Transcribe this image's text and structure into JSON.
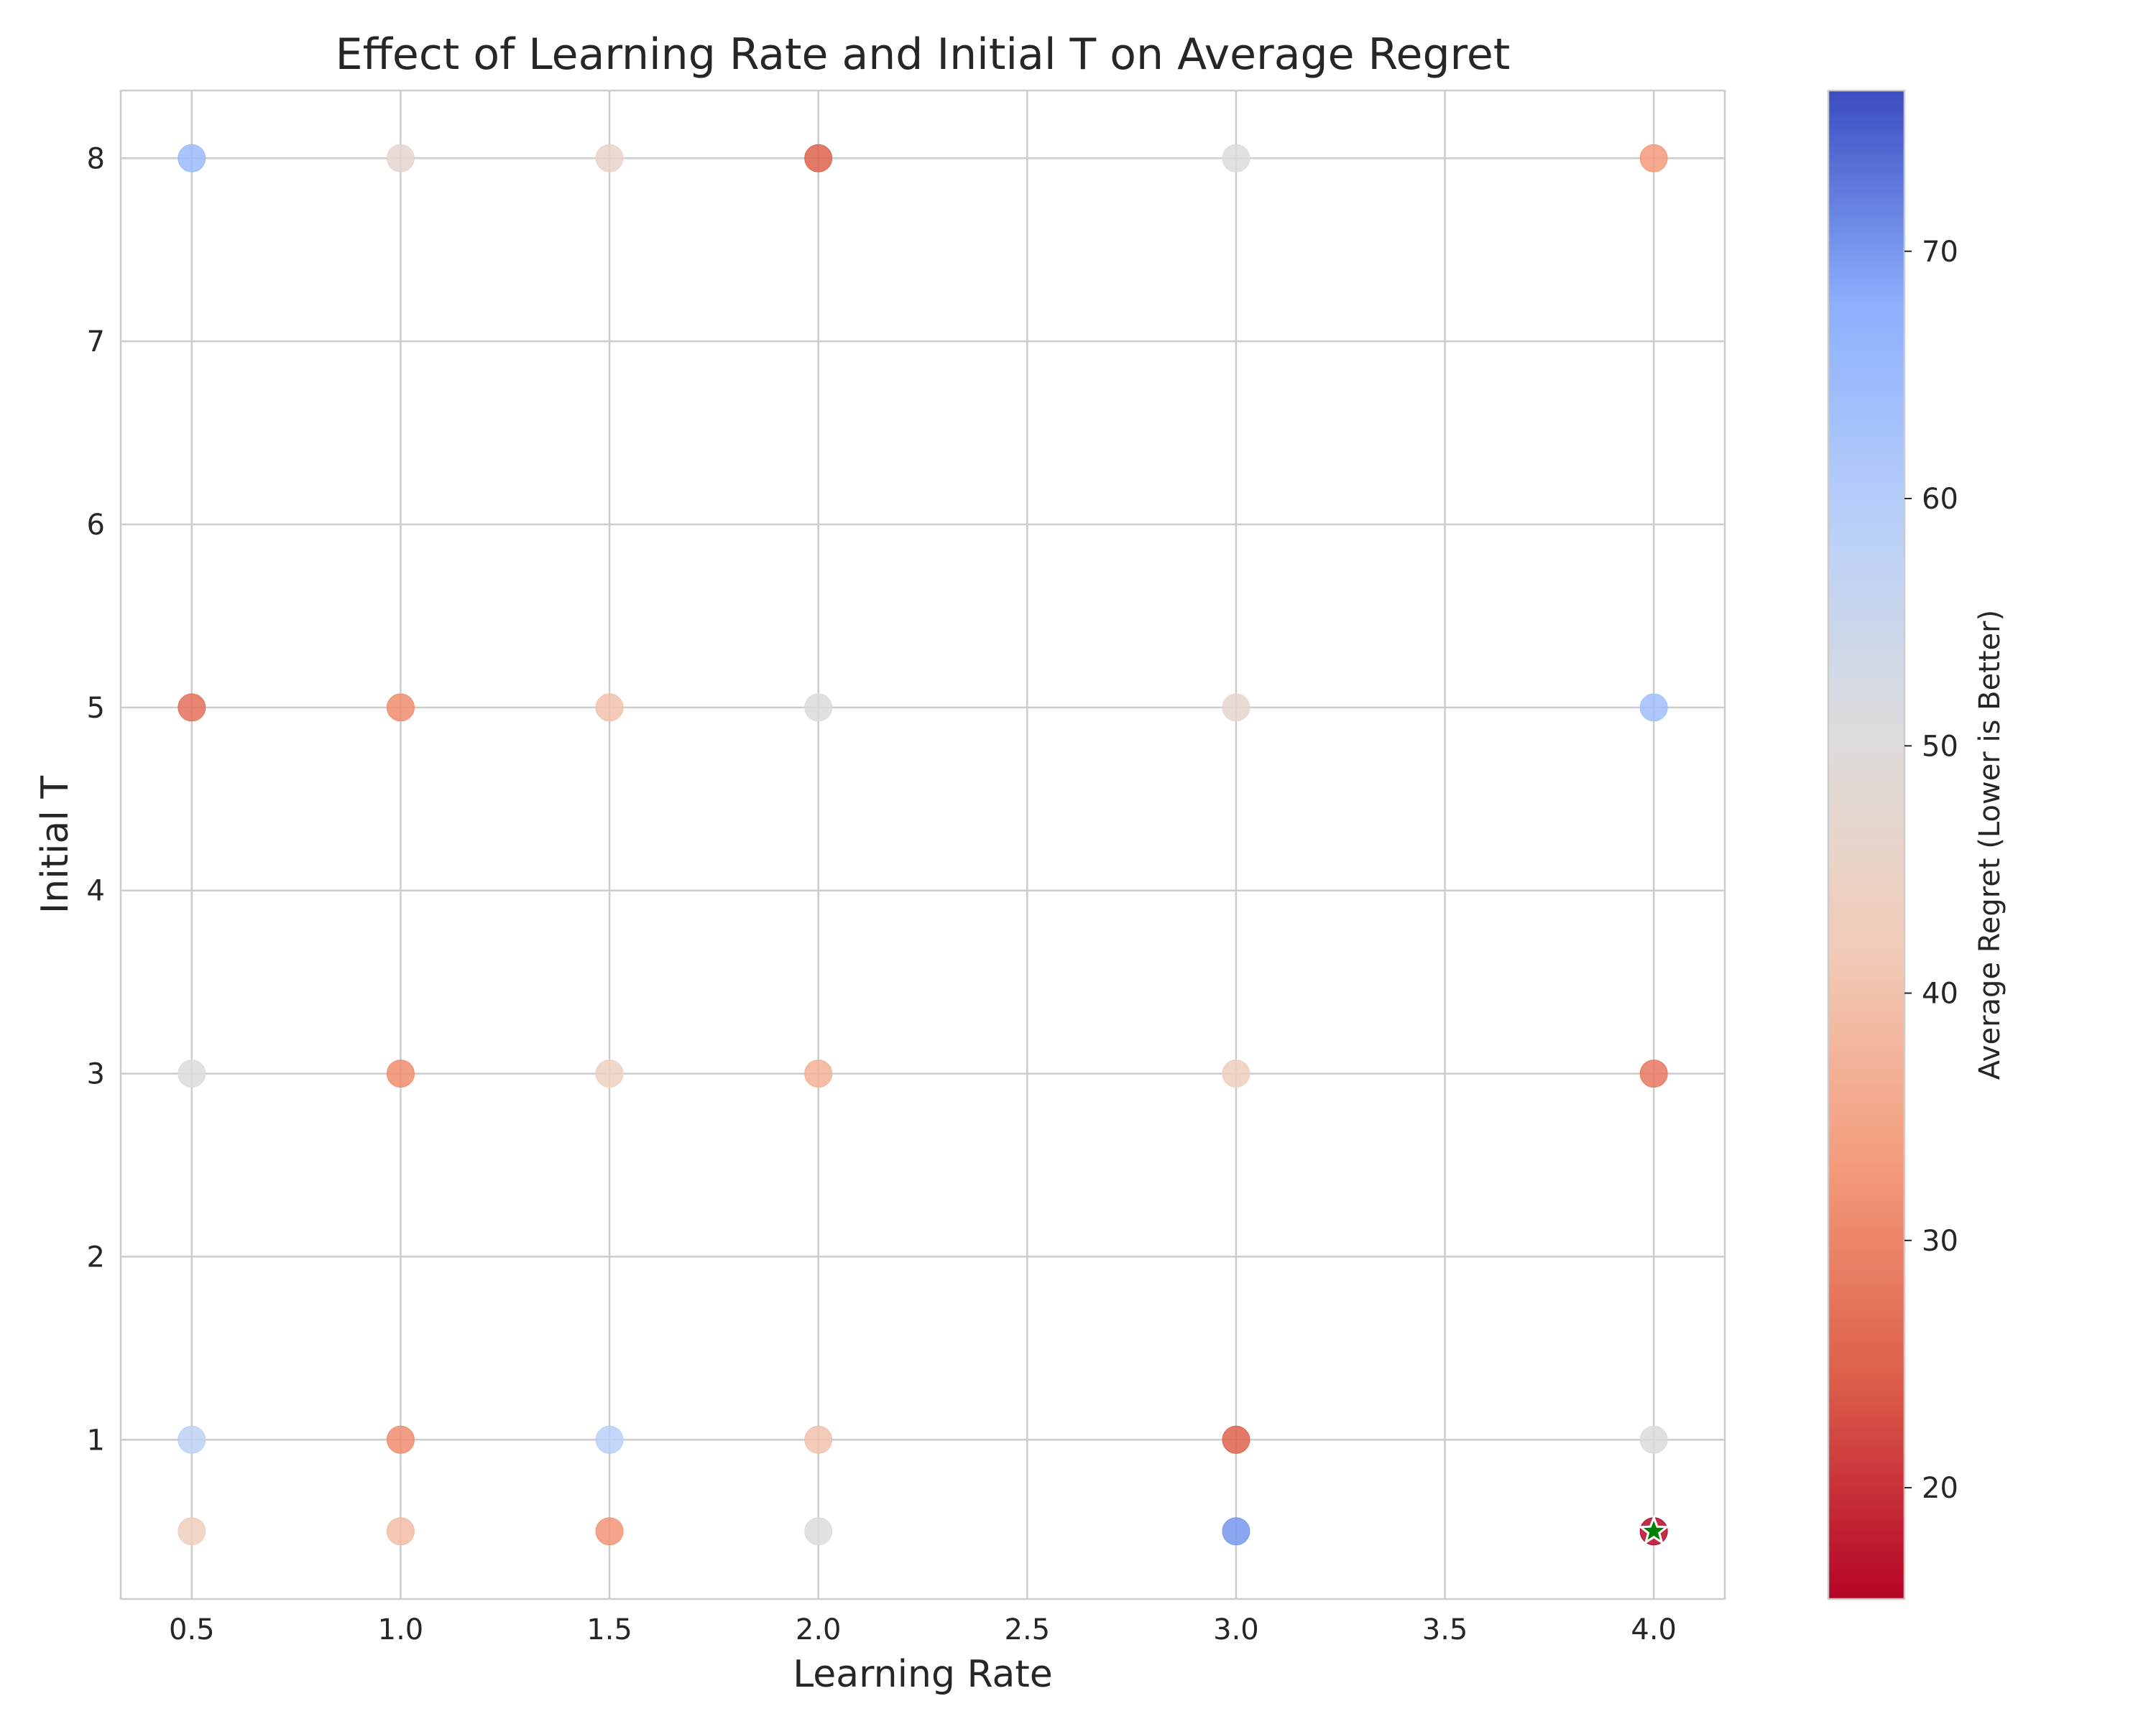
{
  "chart_data": {
    "type": "scatter",
    "title": "Effect of Learning Rate and Initial T on Average Regret",
    "xlabel": "Learning Rate",
    "ylabel": "Initial T",
    "xlim": [
      0.33,
      4.17
    ],
    "ylim": [
      0.13,
      8.37
    ],
    "x_ticks": [
      0.5,
      1.0,
      1.5,
      2.0,
      2.5,
      3.0,
      3.5,
      4.0
    ],
    "y_ticks": [
      1,
      2,
      3,
      4,
      5,
      6,
      7,
      8
    ],
    "grid": true,
    "colorbar": {
      "label": "Average Regret (Lower is Better)",
      "range": [
        15.5,
        76.5
      ],
      "ticks": [
        20,
        30,
        40,
        50,
        60,
        70
      ],
      "colormap": "coolwarm_r",
      "stops": [
        "#b40426",
        "#dc5d4a",
        "#f49a7b",
        "#f2cbb7",
        "#dddcdc",
        "#b9d0f9",
        "#8db0fe",
        "#3b4cc0"
      ]
    },
    "points": [
      {
        "x": 0.5,
        "y": 8,
        "regret": 65
      },
      {
        "x": 1.0,
        "y": 8,
        "regret": 47
      },
      {
        "x": 1.5,
        "y": 8,
        "regret": 46
      },
      {
        "x": 2.0,
        "y": 8,
        "regret": 25
      },
      {
        "x": 3.0,
        "y": 8,
        "regret": 50
      },
      {
        "x": 4.0,
        "y": 8,
        "regret": 33
      },
      {
        "x": 0.5,
        "y": 5,
        "regret": 27
      },
      {
        "x": 1.0,
        "y": 5,
        "regret": 31
      },
      {
        "x": 1.5,
        "y": 5,
        "regret": 40
      },
      {
        "x": 2.0,
        "y": 5,
        "regret": 51
      },
      {
        "x": 3.0,
        "y": 5,
        "regret": 47
      },
      {
        "x": 4.0,
        "y": 5,
        "regret": 64
      },
      {
        "x": 0.5,
        "y": 3,
        "regret": 50
      },
      {
        "x": 1.0,
        "y": 3,
        "regret": 31
      },
      {
        "x": 1.5,
        "y": 3,
        "regret": 44
      },
      {
        "x": 2.0,
        "y": 3,
        "regret": 37
      },
      {
        "x": 3.0,
        "y": 3,
        "regret": 43
      },
      {
        "x": 4.0,
        "y": 3,
        "regret": 28
      },
      {
        "x": 0.5,
        "y": 1,
        "regret": 58
      },
      {
        "x": 1.0,
        "y": 1,
        "regret": 31
      },
      {
        "x": 1.5,
        "y": 1,
        "regret": 59
      },
      {
        "x": 2.0,
        "y": 1,
        "regret": 40
      },
      {
        "x": 3.0,
        "y": 1,
        "regret": 25
      },
      {
        "x": 4.0,
        "y": 1,
        "regret": 51
      },
      {
        "x": 0.5,
        "y": 0.5,
        "regret": 43
      },
      {
        "x": 1.0,
        "y": 0.5,
        "regret": 39
      },
      {
        "x": 1.5,
        "y": 0.5,
        "regret": 32
      },
      {
        "x": 2.0,
        "y": 0.5,
        "regret": 50
      },
      {
        "x": 3.0,
        "y": 0.5,
        "regret": 70
      },
      {
        "x": 4.0,
        "y": 0.5,
        "regret": 16
      }
    ],
    "best_point": {
      "x": 4.0,
      "y": 0.5,
      "marker": "star",
      "color": "#008000"
    }
  }
}
